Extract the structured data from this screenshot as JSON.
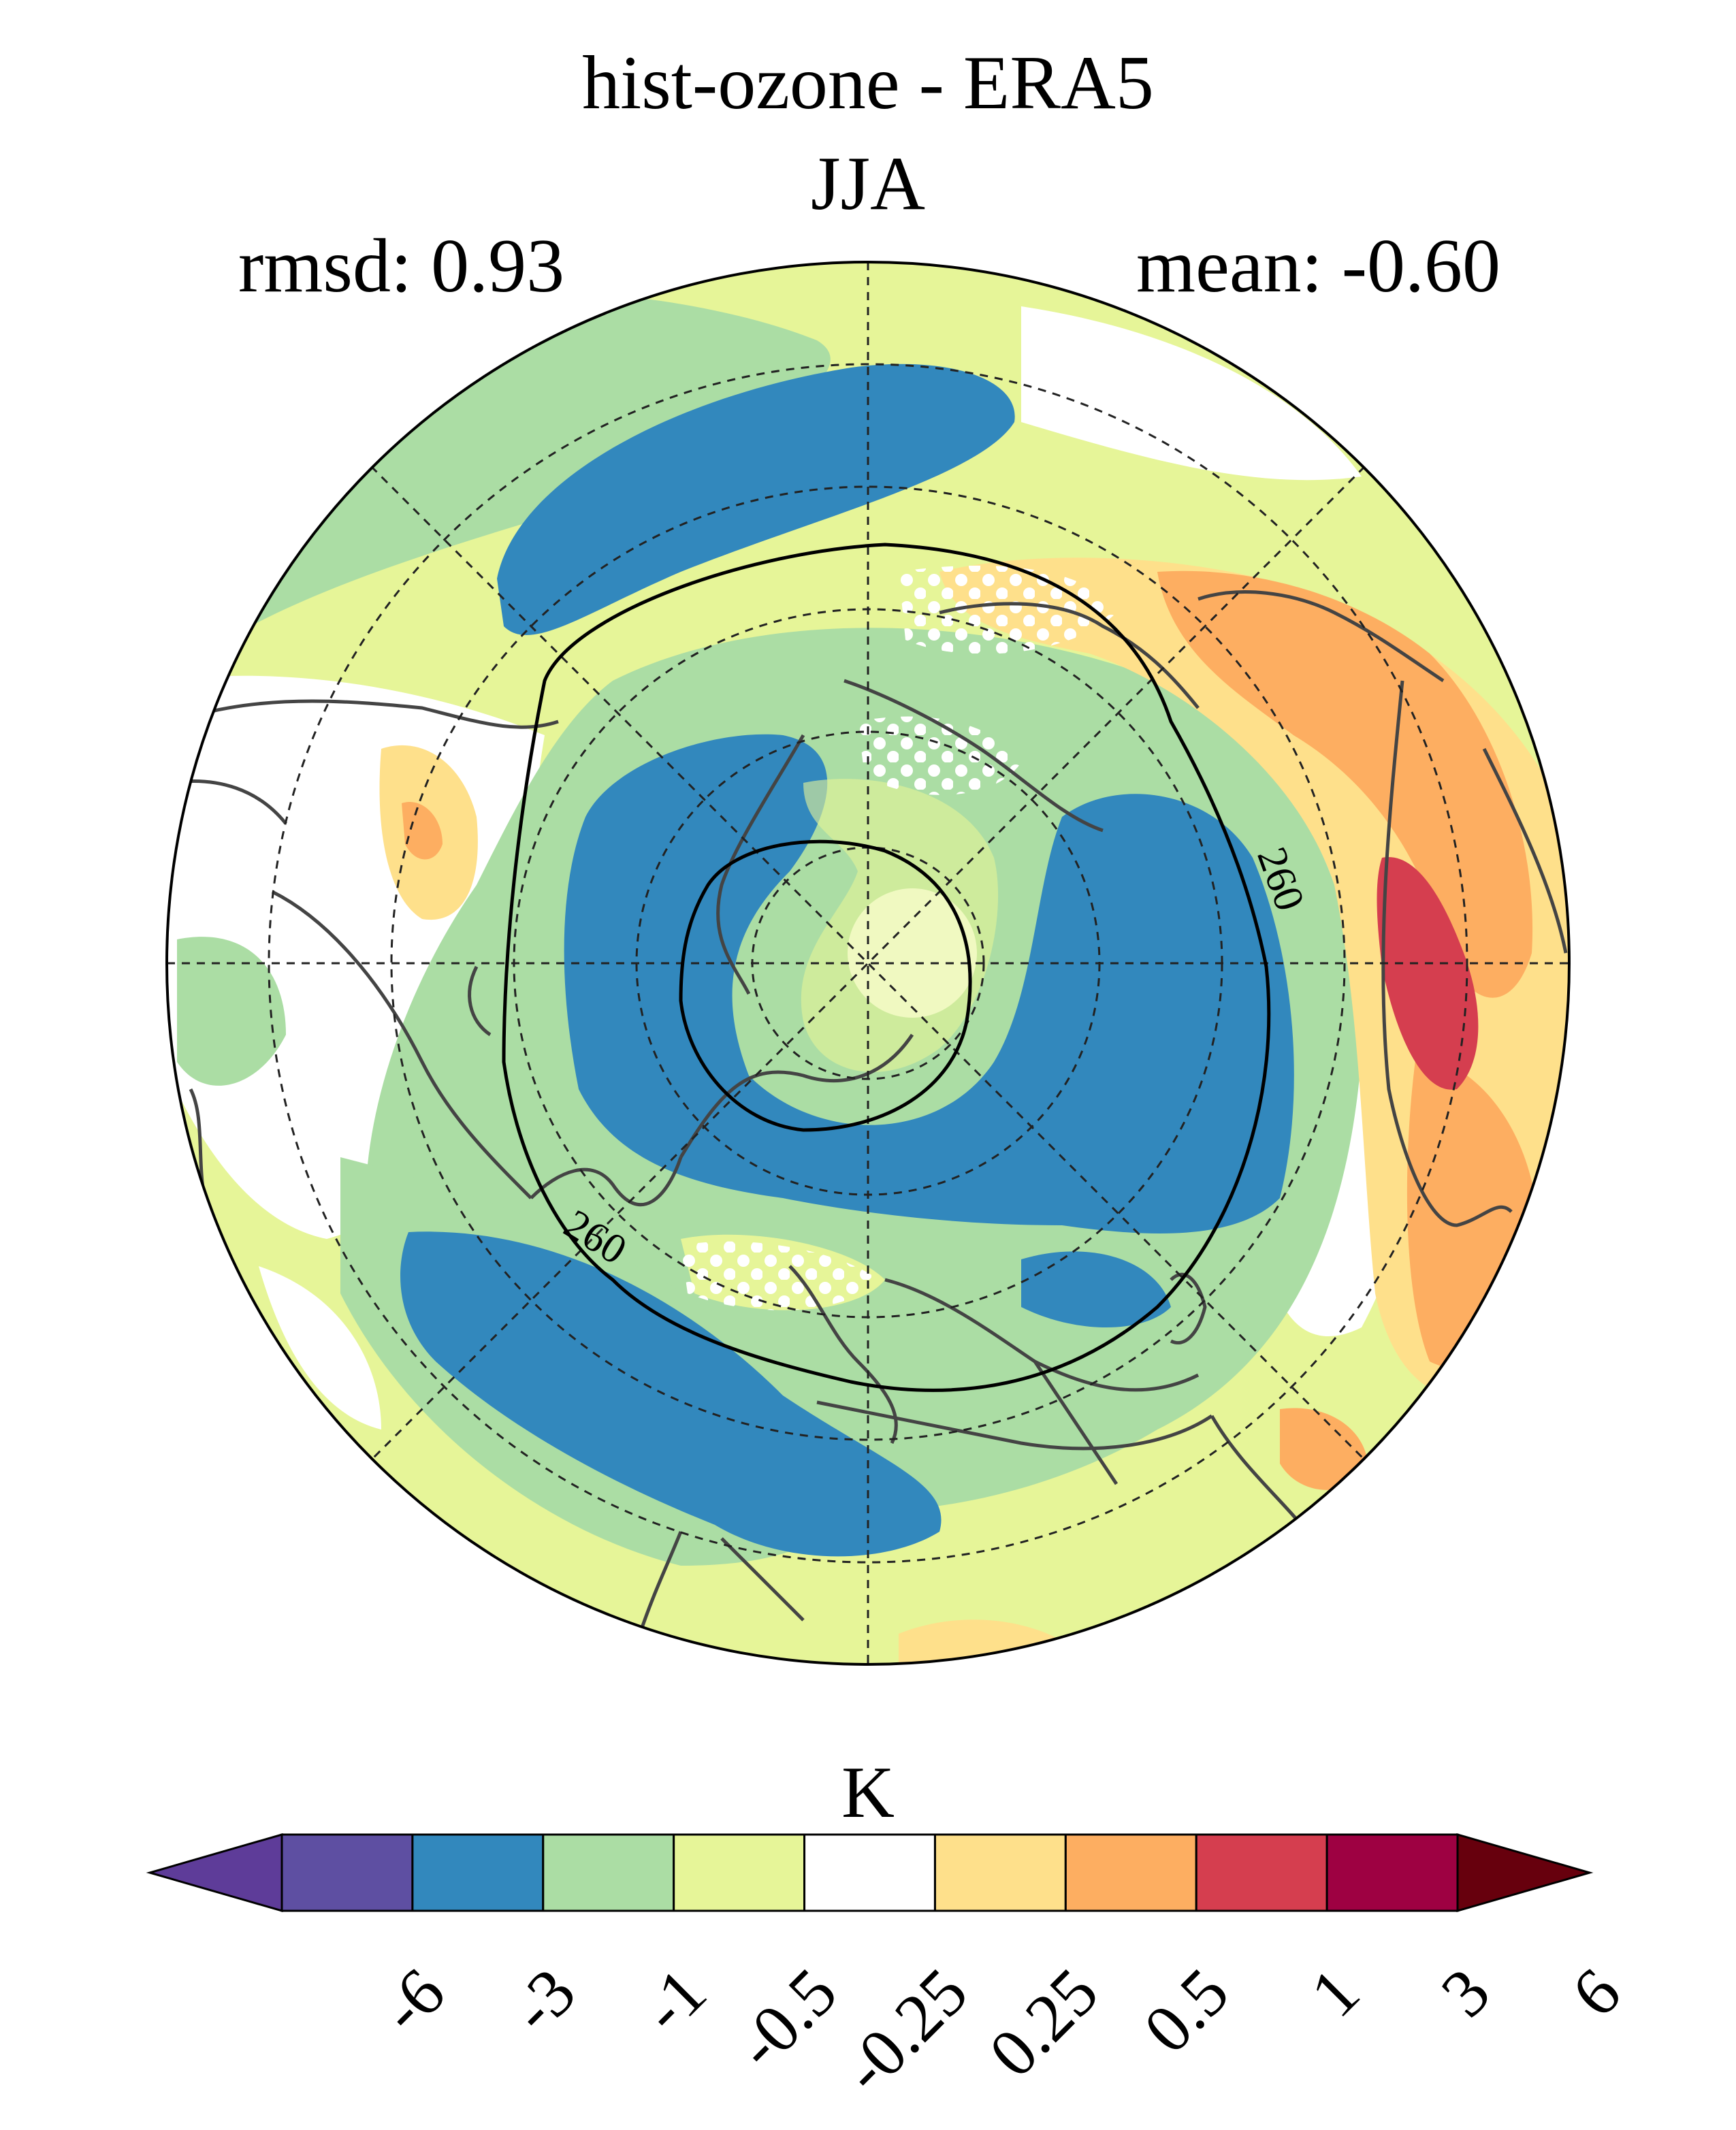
{
  "title": "hist-ozone - ERA5",
  "season": "JJA",
  "rmsd_label": "rmsd: 0.93",
  "mean_label": "mean: -0.60",
  "contour_label_1": "260",
  "contour_label_2": "260",
  "colorbar": {
    "unit": "K",
    "levels": [
      "-6",
      "-3",
      "-1",
      "-0.5",
      "-0.25",
      "0.25",
      "0.5",
      "1",
      "3",
      "6"
    ],
    "colors": [
      "#5e3c99",
      "#5e4fa2",
      "#3288bd",
      "#abdda4",
      "#e6f598",
      "#ffffff",
      "#fee08b",
      "#fdae61",
      "#d53e4f",
      "#9e0142",
      "#67000d"
    ]
  },
  "map": {
    "projection": "north-polar-stereographic",
    "field_colors": {
      "strong_negative": "#3288bd",
      "moderate_negative": "#abdda4",
      "weak_negative": "#e6f598",
      "neutral": "#ffffff",
      "weak_positive": "#fee08b",
      "moderate_positive": "#fdae61",
      "strong_positive": "#d53e4f"
    },
    "coastline_color": "#444444"
  }
}
